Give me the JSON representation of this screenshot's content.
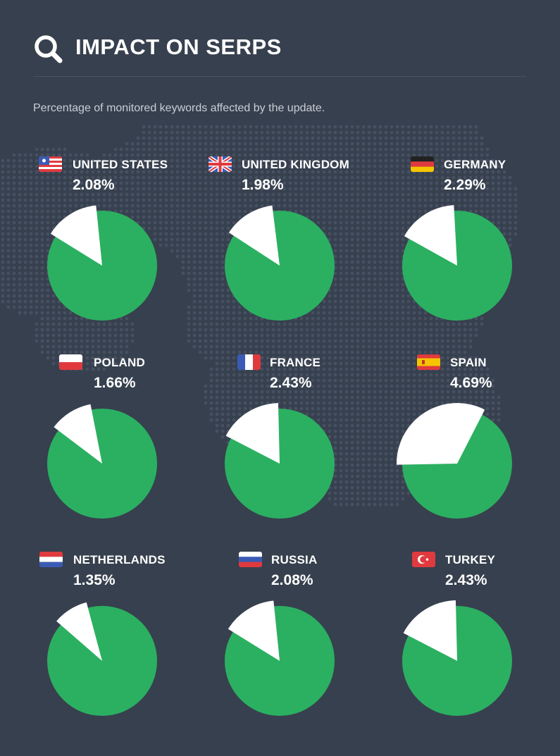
{
  "header": {
    "title": "IMPACT ON SERPS",
    "subtitle": "Percentage of monitored keywords affected by the update.",
    "icon": "search-icon"
  },
  "colors": {
    "background": "#37404e",
    "pie_main": "#2bb061",
    "pie_slice": "#ffffff",
    "map_dots": "#465061"
  },
  "chart_data": {
    "type": "pie",
    "title": "IMPACT ON SERPS",
    "subtitle": "Percentage of monitored keywords affected by the update.",
    "unit": "%",
    "countries": [
      {
        "name": "UNITED STATES",
        "label": "2.08%",
        "value": 2.08,
        "flag": "us-flag-icon"
      },
      {
        "name": "UNITED KINGDOM",
        "label": "1.98%",
        "value": 1.98,
        "flag": "uk-flag-icon"
      },
      {
        "name": "GERMANY",
        "label": "2.29%",
        "value": 2.29,
        "flag": "germany-flag-icon"
      },
      {
        "name": "POLAND",
        "label": "1.66%",
        "value": 1.66,
        "flag": "poland-flag-icon"
      },
      {
        "name": "FRANCE",
        "label": "2.43%",
        "value": 2.43,
        "flag": "france-flag-icon"
      },
      {
        "name": "SPAIN",
        "label": "4.69%",
        "value": 4.69,
        "flag": "spain-flag-icon"
      },
      {
        "name": "NETHERLANDS",
        "label": "1.35%",
        "value": 1.35,
        "flag": "netherlands-flag-icon"
      },
      {
        "name": "RUSSIA",
        "label": "2.08%",
        "value": 2.08,
        "flag": "russia-flag-icon"
      },
      {
        "name": "TURKEY",
        "label": "2.43%",
        "value": 2.43,
        "flag": "turkey-flag-icon"
      }
    ]
  }
}
